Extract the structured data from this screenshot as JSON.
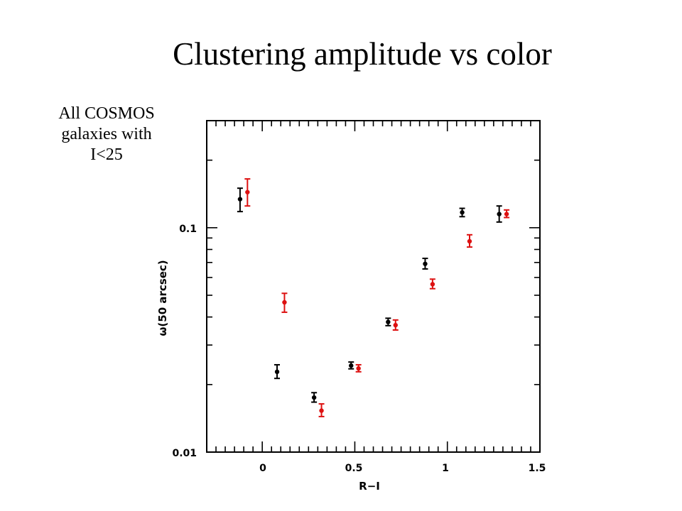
{
  "slide": {
    "title": "Clustering amplitude vs color",
    "note_lines": [
      "All COSMOS",
      "galaxies with",
      "I<25"
    ]
  },
  "chart_data": {
    "type": "scatter",
    "title": "",
    "xlabel": "R−I",
    "ylabel": "ω(50 arcsec)",
    "xlim": [
      -0.3,
      1.5
    ],
    "ylim": [
      0.01,
      0.3
    ],
    "y_scale": "log",
    "x_ticks": [
      "0",
      "0.5",
      "1",
      "1.5"
    ],
    "y_ticks": [
      "0.01",
      "0.1"
    ],
    "grid": false,
    "legend": "none",
    "series": [
      {
        "color": "#000000",
        "points": [
          {
            "x": -0.12,
            "y": 0.134,
            "lo": 0.118,
            "hi": 0.15
          },
          {
            "x": 0.08,
            "y": 0.0228,
            "lo": 0.0213,
            "hi": 0.0245
          },
          {
            "x": 0.28,
            "y": 0.0175,
            "lo": 0.0167,
            "hi": 0.0184
          },
          {
            "x": 0.48,
            "y": 0.0243,
            "lo": 0.0235,
            "hi": 0.0252
          },
          {
            "x": 0.68,
            "y": 0.038,
            "lo": 0.0366,
            "hi": 0.0395
          },
          {
            "x": 0.88,
            "y": 0.069,
            "lo": 0.0655,
            "hi": 0.073
          },
          {
            "x": 1.08,
            "y": 0.117,
            "lo": 0.112,
            "hi": 0.122
          },
          {
            "x": 1.28,
            "y": 0.115,
            "lo": 0.106,
            "hi": 0.125
          }
        ]
      },
      {
        "color": "#dd1111",
        "points": [
          {
            "x": -0.08,
            "y": 0.144,
            "lo": 0.125,
            "hi": 0.165
          },
          {
            "x": 0.12,
            "y": 0.0465,
            "lo": 0.042,
            "hi": 0.051
          },
          {
            "x": 0.32,
            "y": 0.0153,
            "lo": 0.0144,
            "hi": 0.0164
          },
          {
            "x": 0.52,
            "y": 0.0236,
            "lo": 0.0228,
            "hi": 0.0245
          },
          {
            "x": 0.72,
            "y": 0.0368,
            "lo": 0.035,
            "hi": 0.0388
          },
          {
            "x": 0.92,
            "y": 0.056,
            "lo": 0.0535,
            "hi": 0.059
          },
          {
            "x": 1.12,
            "y": 0.087,
            "lo": 0.082,
            "hi": 0.093
          },
          {
            "x": 1.32,
            "y": 0.115,
            "lo": 0.111,
            "hi": 0.12
          }
        ]
      }
    ]
  }
}
